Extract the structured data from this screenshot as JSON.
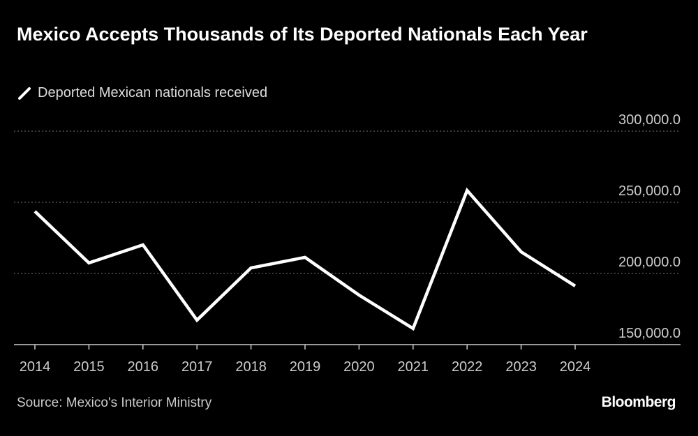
{
  "chart_data": {
    "type": "line",
    "title": "Mexico Accepts Thousands of Its Deported Nationals Each Year",
    "categories": [
      "2014",
      "2015",
      "2016",
      "2017",
      "2018",
      "2019",
      "2020",
      "2021",
      "2022",
      "2023",
      "2024"
    ],
    "series": [
      {
        "name": "Deported Mexican nationals received",
        "color": "#ffffff",
        "values": [
          243600,
          207400,
          220100,
          167200,
          203900,
          211300,
          184800,
          161300,
          258300,
          215200,
          191200
        ]
      }
    ],
    "ylim": [
      150000,
      300000
    ],
    "yticks": [
      {
        "value": 150000,
        "label": "150,000.0"
      },
      {
        "value": 200000,
        "label": "200,000.0"
      },
      {
        "value": 250000,
        "label": "250,000.0"
      },
      {
        "value": 300000,
        "label": "300,000.0"
      }
    ],
    "grid": true,
    "source": "Source: Mexico's Interior Ministry",
    "logo": "Bloomberg"
  }
}
